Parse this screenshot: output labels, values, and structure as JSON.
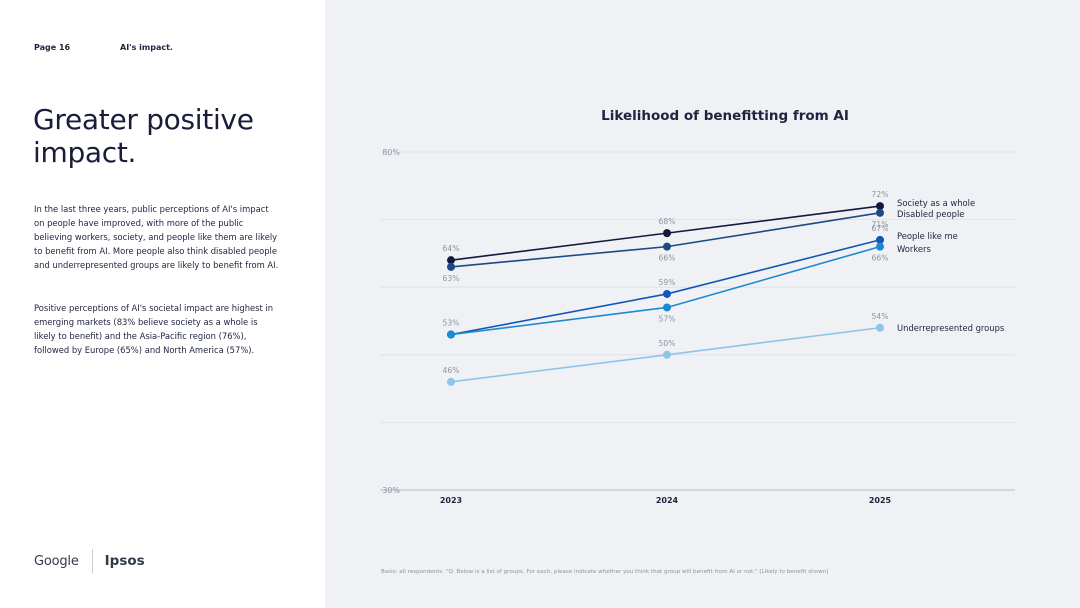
{
  "header": {
    "page": "Page 16",
    "section": "AI's impact."
  },
  "headline": "Greater positive impact.",
  "paragraphs": [
    "In the last three years, public perceptions of AI's impact on people have improved, with more of the public believing workers, society, and people like them are likely to benefit from AI. More people also think disabled people and underrepresented groups are likely to benefit from AI.",
    "Positive perceptions of AI's societal impact are highest in emerging markets (83% believe society as a whole is likely to benefit) and the Asia-Pacific region (76%), followed by Europe (65%) and North America (57%)."
  ],
  "logos": {
    "google": "Google",
    "ipsos": "Ipsos"
  },
  "footnote": "Basis: all respondents. \"Q. Below is a list of groups. For each, please indicate whether you think that group will benefit from AI or not.\" [Likely to benefit shown]",
  "colors": {
    "society": "#101a3f",
    "disabled": "#1c4a86",
    "people": "#1256b6",
    "workers": "#1b8ad2",
    "underrep": "#8cc4ea",
    "text": "#1f2340",
    "muted": "#8c93a3"
  },
  "chart_data": {
    "type": "line",
    "title": "Likelihood of benefitting from AI",
    "x": [
      "2023",
      "2024",
      "2025"
    ],
    "ylim": [
      30,
      80
    ],
    "y_tick_labels": [
      "80%",
      "30%"
    ],
    "grid": true,
    "series": [
      {
        "key": "society",
        "name": "Society as a whole",
        "values": [
          64,
          68,
          72
        ],
        "labels": [
          "64%",
          "68%",
          "72%"
        ],
        "label_pos": [
          "above",
          "above",
          "above"
        ]
      },
      {
        "key": "disabled",
        "name": "Disabled people",
        "values": [
          63,
          66,
          71
        ],
        "labels": [
          "63%",
          "66%",
          "71%"
        ],
        "label_pos": [
          "below",
          "below",
          "below"
        ]
      },
      {
        "key": "people",
        "name": "People like me",
        "values": [
          53,
          59,
          67
        ],
        "labels": [
          "53%",
          "59%",
          "67%"
        ],
        "label_pos": [
          "above",
          "above",
          "above"
        ]
      },
      {
        "key": "workers",
        "name": "Workers",
        "values": [
          53,
          57,
          66
        ],
        "labels": [
          "",
          "57%",
          "66%"
        ],
        "label_pos": [
          "none",
          "below",
          "below"
        ]
      },
      {
        "key": "underrep",
        "name": "Underrepresented groups",
        "values": [
          46,
          50,
          54
        ],
        "labels": [
          "46%",
          "50%",
          "54%"
        ],
        "label_pos": [
          "above",
          "above",
          "above"
        ]
      }
    ]
  }
}
